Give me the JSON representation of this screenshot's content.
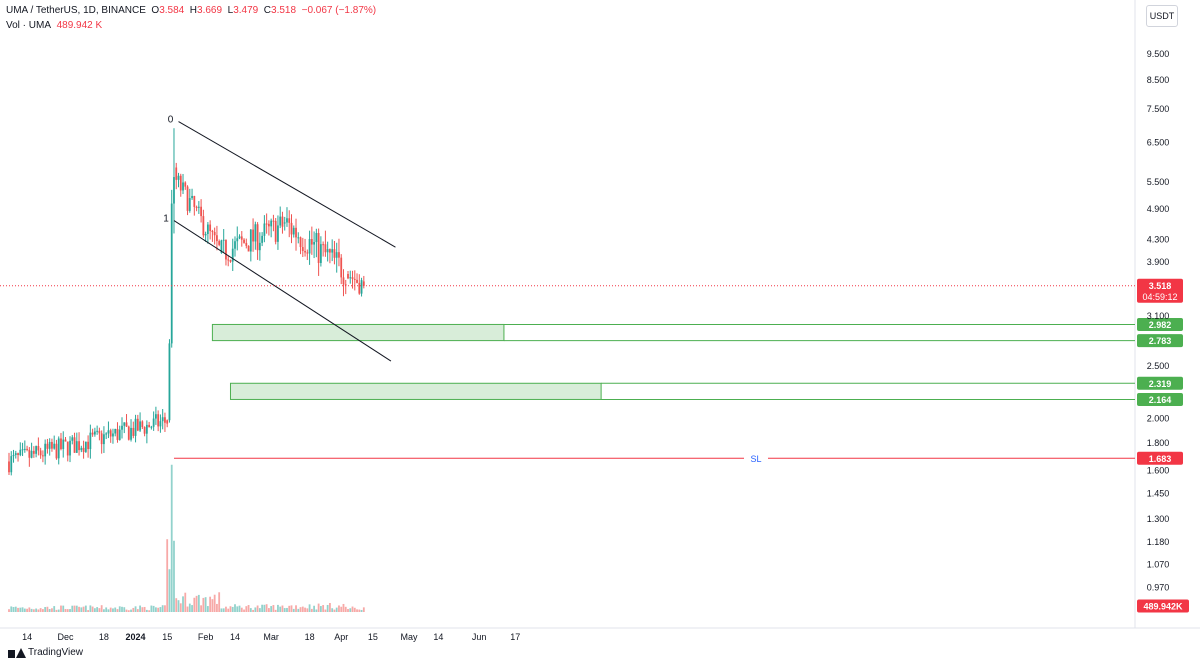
{
  "header": {
    "symbol": "UMA / TetherUS, 1D, BINANCE",
    "o_label": "O",
    "o_value": "3.584",
    "h_label": "H",
    "h_value": "3.669",
    "l_label": "L",
    "l_value": "3.479",
    "c_label": "C",
    "c_value": "3.518",
    "change": "−0.067 (−1.87%)",
    "vol_label": "Vol · UMA",
    "vol_value": "489.942 K"
  },
  "currency": "USDT",
  "branding": "TradingView",
  "colors": {
    "up": "#26a69a",
    "down": "#ef5350",
    "zone": "#4caf50",
    "sl": "#f23645",
    "price": "#f23645",
    "channel": "#131722"
  },
  "chart_data": {
    "type": "candlestick",
    "scale": "log",
    "ylim": [
      0.93,
      10.5
    ],
    "y_ticks": [
      "9.500",
      "8.500",
      "7.500",
      "6.500",
      "5.500",
      "4.900",
      "4.300",
      "3.900",
      "3.100",
      "2.500",
      "2.000",
      "1.800",
      "1.600",
      "1.450",
      "1.300",
      "1.180",
      "1.070",
      "0.970"
    ],
    "x_ticks": [
      "14",
      "Dec",
      "18",
      "2024",
      "15",
      "Feb",
      "14",
      "Mar",
      "18",
      "Apr",
      "15",
      "May",
      "14",
      "Jun",
      "17"
    ],
    "last_price": {
      "label": "3.518",
      "countdown": "04:59:12",
      "value": 3.518
    },
    "volume_label": "489.942K",
    "zones": [
      {
        "from": "2024-02-04",
        "to": "2024-06-12",
        "high": 2.982,
        "low": 2.783,
        "high_label": "2.982",
        "low_label": "2.783"
      },
      {
        "from": "2024-02-12",
        "to": "2024-07-25",
        "high": 2.319,
        "low": 2.164,
        "high_label": "2.319",
        "low_label": "2.164"
      }
    ],
    "stop_loss": {
      "label": "SL",
      "value": 1.683,
      "value_label": "1.683",
      "from": "2024-01-18"
    },
    "channel": {
      "upper": [
        [
          "2024-01-20",
          7.1
        ],
        [
          "2024-04-25",
          4.15
        ]
      ],
      "lower": [
        [
          "2024-01-18",
          4.65
        ],
        [
          "2024-04-23",
          2.55
        ]
      ],
      "upper_tag": "0",
      "lower_tag": "1"
    },
    "segments": [
      {
        "from": "2023-11-06",
        "to": "2024-01-14",
        "start": 1.66,
        "end": 1.97,
        "noise": 0.045,
        "vol": 0.06,
        "dir": [
          0.0,
          0.05,
          -0.02,
          0.06,
          0.03,
          -0.03,
          0.05,
          0.04,
          -0.05,
          0.02
        ]
      },
      {
        "from": "2024-01-15",
        "to": "2024-01-17",
        "start": 1.98,
        "end": 5.2,
        "noise": 0.05,
        "vol": 0.7
      },
      {
        "from": "2024-01-18",
        "to": "2024-02-07",
        "start": 5.6,
        "end": 4.1,
        "noise": 0.05,
        "vol": 0.18
      },
      {
        "from": "2024-02-08",
        "to": "2024-03-06",
        "start": 4.05,
        "end": 4.55,
        "noise": 0.06,
        "vol": 0.07
      },
      {
        "from": "2024-03-07",
        "to": "2024-04-03",
        "start": 4.6,
        "end": 3.75,
        "noise": 0.07,
        "vol": 0.08
      },
      {
        "from": "2024-04-04",
        "to": "2024-04-11",
        "start": 3.7,
        "end": 3.52,
        "noise": 0.05,
        "vol": 0.05
      }
    ]
  }
}
